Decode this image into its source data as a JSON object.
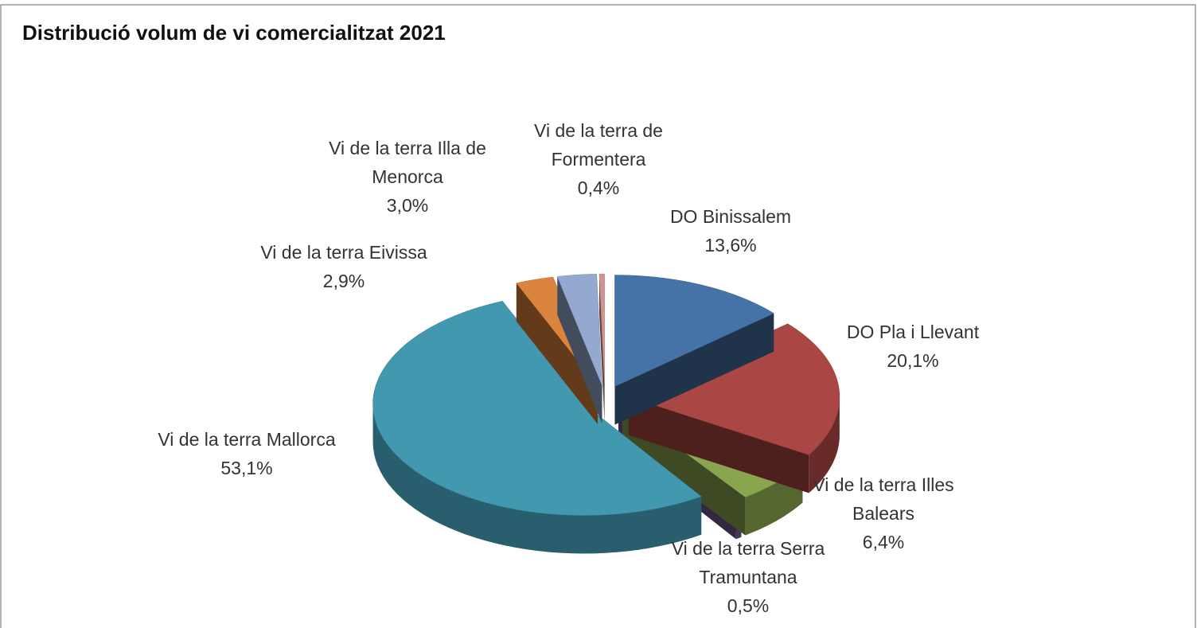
{
  "chart_data": {
    "type": "pie3d",
    "title": "Distribució volum de vi comercialitzat 2021",
    "categories": [
      "DO Binissalem",
      "DO Pla i Llevant",
      "Vi de la terra Illes Balears",
      "Vi de la terra Serra Tramuntana",
      "Vi de la terra Mallorca",
      "Vi de la terra Eivissa",
      "Vi de la terra Illa de Menorca",
      "Vi de la terra de Formentera"
    ],
    "values": [
      13.6,
      20.1,
      6.4,
      0.5,
      53.1,
      2.9,
      3.0,
      0.4
    ],
    "value_labels": [
      "13,6%",
      "20,1%",
      "6,4%",
      "0,5%",
      "53,1%",
      "2,9%",
      "3,0%",
      "0,4%"
    ],
    "colors": [
      "#4572a7",
      "#aa4643",
      "#89a54e",
      "#71588f",
      "#4198af",
      "#db843d",
      "#93a9cf",
      "#d19392"
    ]
  }
}
